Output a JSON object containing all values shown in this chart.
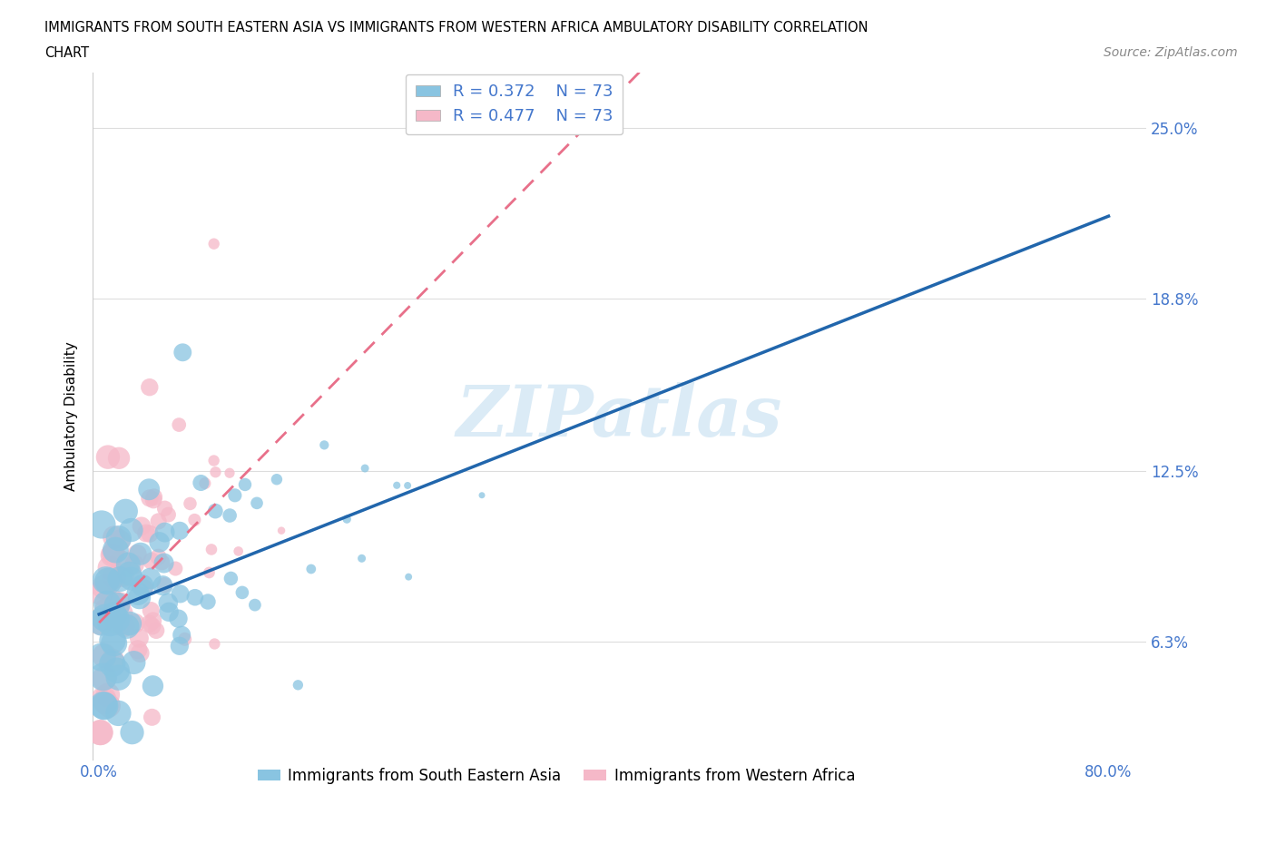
{
  "title_line1": "IMMIGRANTS FROM SOUTH EASTERN ASIA VS IMMIGRANTS FROM WESTERN AFRICA AMBULATORY DISABILITY CORRELATION",
  "title_line2": "CHART",
  "source": "Source: ZipAtlas.com",
  "ylabel": "Ambulatory Disability",
  "xlim": [
    -0.005,
    0.83
  ],
  "ylim": [
    0.02,
    0.27
  ],
  "xticks": [
    0.0,
    0.2,
    0.4,
    0.6,
    0.8
  ],
  "xticklabels": [
    "0.0%",
    "",
    "",
    "",
    "80.0%"
  ],
  "yticks_right": [
    0.063,
    0.125,
    0.188,
    0.25
  ],
  "yticks_right_labels": [
    "6.3%",
    "12.5%",
    "18.8%",
    "25.0%"
  ],
  "watermark": "ZIPatlas",
  "blue_R": 0.372,
  "blue_N": 73,
  "pink_R": 0.477,
  "pink_N": 73,
  "blue_color": "#89c4e1",
  "pink_color": "#f5b8c8",
  "blue_line_color": "#2166ac",
  "pink_line_color": "#e8708a",
  "legend_label_blue": "Immigrants from South Eastern Asia",
  "legend_label_pink": "Immigrants from Western Africa",
  "background_color": "#ffffff",
  "grid_color": "#dddddd",
  "title_fontsize": 11,
  "axis_label_color": "#4477cc",
  "tick_label_color": "#4477cc"
}
